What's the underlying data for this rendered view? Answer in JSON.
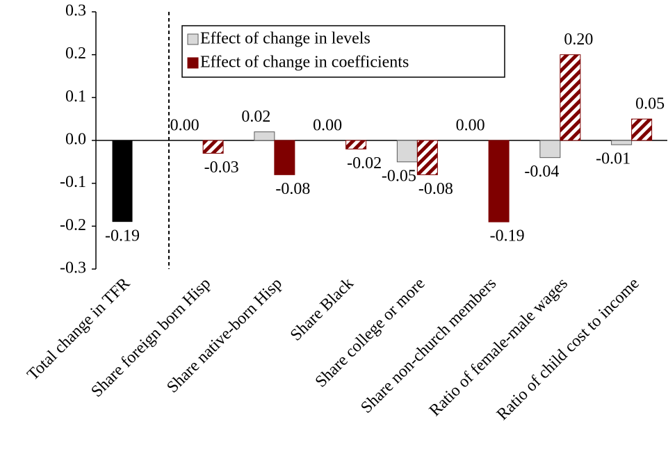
{
  "chart_data": {
    "type": "bar",
    "categories": [
      "Total change in TFR",
      "Share foreign born Hisp",
      "Share native-born Hisp",
      "Share Black",
      "Share college or more",
      "Share non-church members",
      "Ratio of female-male wages",
      "Ratio of child cost to income"
    ],
    "total_bar": {
      "color": "#000000",
      "value": -0.19,
      "value_label": "-0.19"
    },
    "series": [
      {
        "name": "Effect of change in levels",
        "color": "#d9d9d9",
        "values": [
          null,
          0.0,
          0.02,
          0.0,
          -0.05,
          0.0,
          -0.04,
          -0.01
        ],
        "value_labels": [
          null,
          "0.00",
          "0.02",
          "0.00",
          "-0.05",
          "0.00",
          "-0.04",
          "-0.01"
        ]
      },
      {
        "name": "Effect of change in coefficients",
        "color": "#7f0000",
        "values": [
          null,
          -0.03,
          -0.08,
          -0.02,
          -0.08,
          -0.19,
          0.2,
          0.05
        ],
        "value_labels": [
          null,
          "-0.03",
          "-0.08",
          "-0.02",
          "-0.08",
          "-0.19",
          "0.20",
          "0.05"
        ],
        "hatched": [
          false,
          true,
          false,
          true,
          true,
          false,
          true,
          true
        ]
      }
    ],
    "ylim": [
      -0.3,
      0.3
    ],
    "yticks": [
      -0.3,
      -0.2,
      -0.1,
      {
        "value": 0,
        "label": "0.0"
      },
      0.1,
      0.2,
      0.3
    ],
    "grid": false
  }
}
